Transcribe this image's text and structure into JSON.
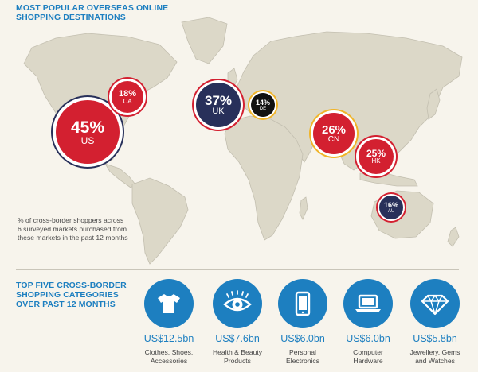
{
  "map_section": {
    "title_line1": "MOST POPULAR OVERSEAS ONLINE",
    "title_line2": "SHOPPING DESTINATIONS",
    "note": "% of cross-border shoppers across 6 surveyed markets purchased from these markets in the past 12 months",
    "markets": [
      {
        "code": "US",
        "percent": "45%",
        "fill": "#d32030",
        "ring": "#28305a"
      },
      {
        "code": "UK",
        "percent": "37%",
        "fill": "#28305a",
        "ring": "#d32030"
      },
      {
        "code": "CN",
        "percent": "26%",
        "fill": "#d32030",
        "ring": "#f0b429"
      },
      {
        "code": "HK",
        "percent": "25%",
        "fill": "#d32030",
        "ring": "#d32030"
      },
      {
        "code": "CA",
        "percent": "18%",
        "fill": "#d32030",
        "ring": "#d32030"
      },
      {
        "code": "AU",
        "percent": "16%",
        "fill": "#28305a",
        "ring": "#d32030"
      },
      {
        "code": "DE",
        "percent": "14%",
        "fill": "#111111",
        "ring": "#f0b429"
      }
    ]
  },
  "categories_section": {
    "title_line1": "TOP FIVE CROSS-BORDER",
    "title_line2": "SHOPPING CATEGORIES",
    "title_line3": "OVER PAST 12 MONTHS",
    "items": [
      {
        "icon": "tshirt-icon",
        "value": "US$12.5bn",
        "label_line1": "Clothes, Shoes,",
        "label_line2": "Accessories"
      },
      {
        "icon": "eye-icon",
        "value": "US$7.6bn",
        "label_line1": "Health & Beauty",
        "label_line2": "Products"
      },
      {
        "icon": "tablet-icon",
        "value": "US$6.0bn",
        "label_line1": "Personal",
        "label_line2": "Electronics"
      },
      {
        "icon": "laptop-icon",
        "value": "US$6.0bn",
        "label_line1": "Computer",
        "label_line2": "Hardware"
      },
      {
        "icon": "diamond-icon",
        "value": "US$5.8bn",
        "label_line1": "Jewellery, Gems",
        "label_line2": "and Watches"
      }
    ]
  },
  "colors": {
    "accent_blue": "#1d7fc0",
    "red": "#d32030",
    "navy": "#28305a",
    "gold": "#f0b429",
    "land": "#dcd8c8",
    "background": "#f7f4ec"
  }
}
